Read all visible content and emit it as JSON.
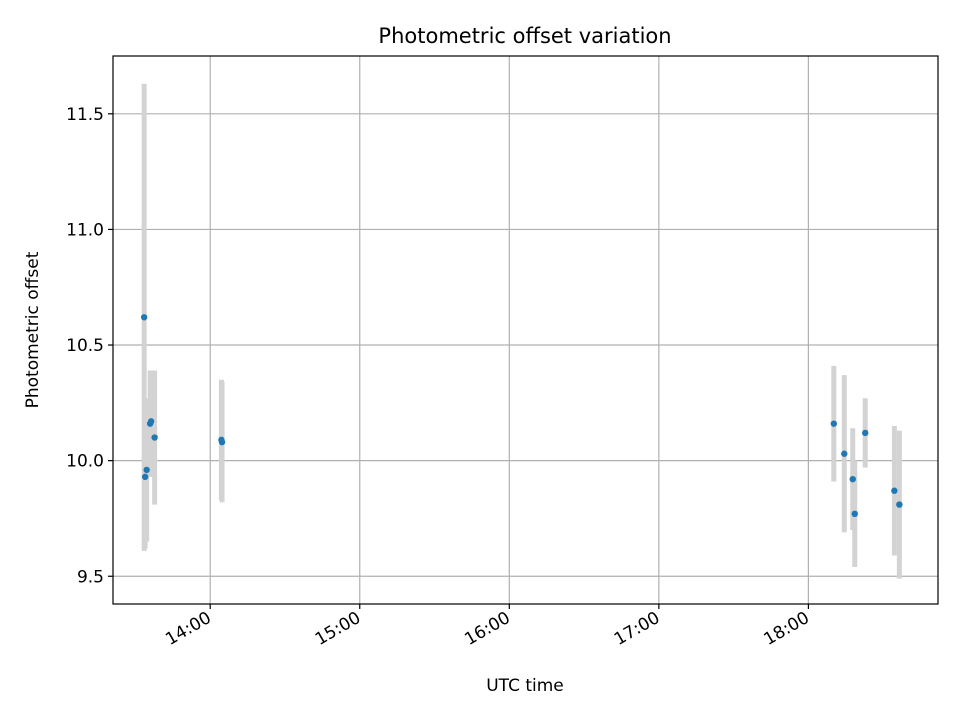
{
  "chart_data": {
    "type": "scatter",
    "title": "Photometric offset variation",
    "xlabel": "UTC time",
    "ylabel": "Photometric offset",
    "x_axis_type": "time",
    "xlim": [
      "13:21",
      "18:52"
    ],
    "ylim": [
      9.38,
      11.75
    ],
    "x_ticks": [
      "14:00",
      "15:00",
      "16:00",
      "17:00",
      "18:00"
    ],
    "y_ticks": [
      9.5,
      10.0,
      10.5,
      11.0,
      11.5
    ],
    "y_tick_labels": [
      "9.5",
      "10.0",
      "10.5",
      "11.0",
      "11.5"
    ],
    "grid": true,
    "legend": "none",
    "point_color": "#1f77b4",
    "errorbar_color": "#d3d3d3",
    "points": [
      {
        "time": "13:33:30",
        "y": 10.62,
        "err": 1.01
      },
      {
        "time": "13:33:54",
        "y": 9.93,
        "err": 0.31
      },
      {
        "time": "13:34:30",
        "y": 9.96,
        "err": 0.31
      },
      {
        "time": "13:35:54",
        "y": 10.16,
        "err": 0.23
      },
      {
        "time": "13:36:18",
        "y": 10.17,
        "err": 0.22
      },
      {
        "time": "13:37:42",
        "y": 10.1,
        "err": 0.29
      },
      {
        "time": "14:04:30",
        "y": 10.09,
        "err": 0.26
      },
      {
        "time": "14:04:45",
        "y": 10.08,
        "err": 0.26
      },
      {
        "time": "18:10:12",
        "y": 10.16,
        "err": 0.25
      },
      {
        "time": "18:14:24",
        "y": 10.03,
        "err": 0.34
      },
      {
        "time": "18:17:48",
        "y": 9.92,
        "err": 0.22
      },
      {
        "time": "18:18:36",
        "y": 9.77,
        "err": 0.23
      },
      {
        "time": "18:22:48",
        "y": 10.12,
        "err": 0.15
      },
      {
        "time": "18:34:30",
        "y": 9.87,
        "err": 0.28
      },
      {
        "time": "18:36:30",
        "y": 9.81,
        "err": 0.32
      }
    ]
  }
}
